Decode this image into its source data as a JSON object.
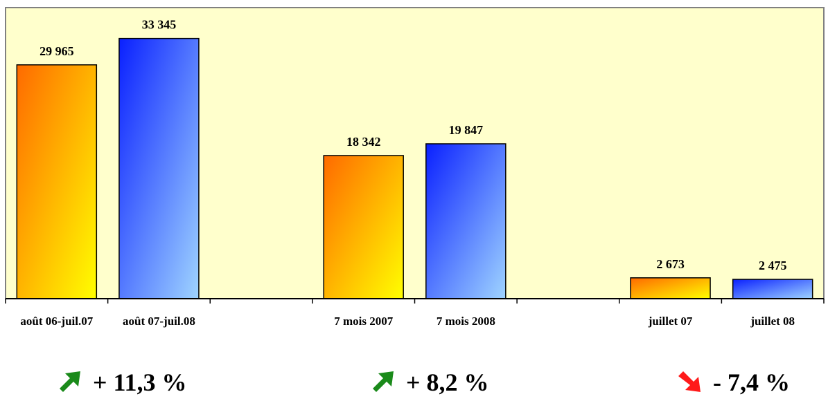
{
  "chart_data": {
    "type": "bar",
    "categories": [
      "août 06-juil.07",
      "août 07-juil.08",
      "",
      "7 mois 2007",
      "7 mois 2008",
      "",
      "juillet 07",
      "juillet 08"
    ],
    "values": [
      29965,
      33345,
      null,
      18342,
      19847,
      null,
      2673,
      2475
    ],
    "value_labels": [
      "29 965",
      "33 345",
      "",
      "18 342",
      "19 847",
      "",
      "2 673",
      "2 475"
    ],
    "bar_styles": [
      "orange",
      "blue",
      "",
      "orange",
      "blue",
      "",
      "orange",
      "blue"
    ],
    "ylim": [
      0,
      37300
    ],
    "grid": false,
    "legend": "none",
    "colors": {
      "plot_background": "#ffffcc",
      "orange_start": "#ff6a00",
      "orange_end": "#ffff00",
      "blue_start": "#0a20ff",
      "blue_end": "#9fd4ff",
      "axis": "#000000",
      "frame": "#808080"
    }
  },
  "changes": [
    {
      "direction": "up",
      "icon": "arrow-up-right-icon",
      "color": "#1a8a1a",
      "text": "+ 11,3 %"
    },
    {
      "direction": "up",
      "icon": "arrow-up-right-icon",
      "color": "#1a8a1a",
      "text": "+ 8,2 %"
    },
    {
      "direction": "down",
      "icon": "arrow-down-right-icon",
      "color": "#ff1a1a",
      "text": "- 7,4 %"
    }
  ]
}
